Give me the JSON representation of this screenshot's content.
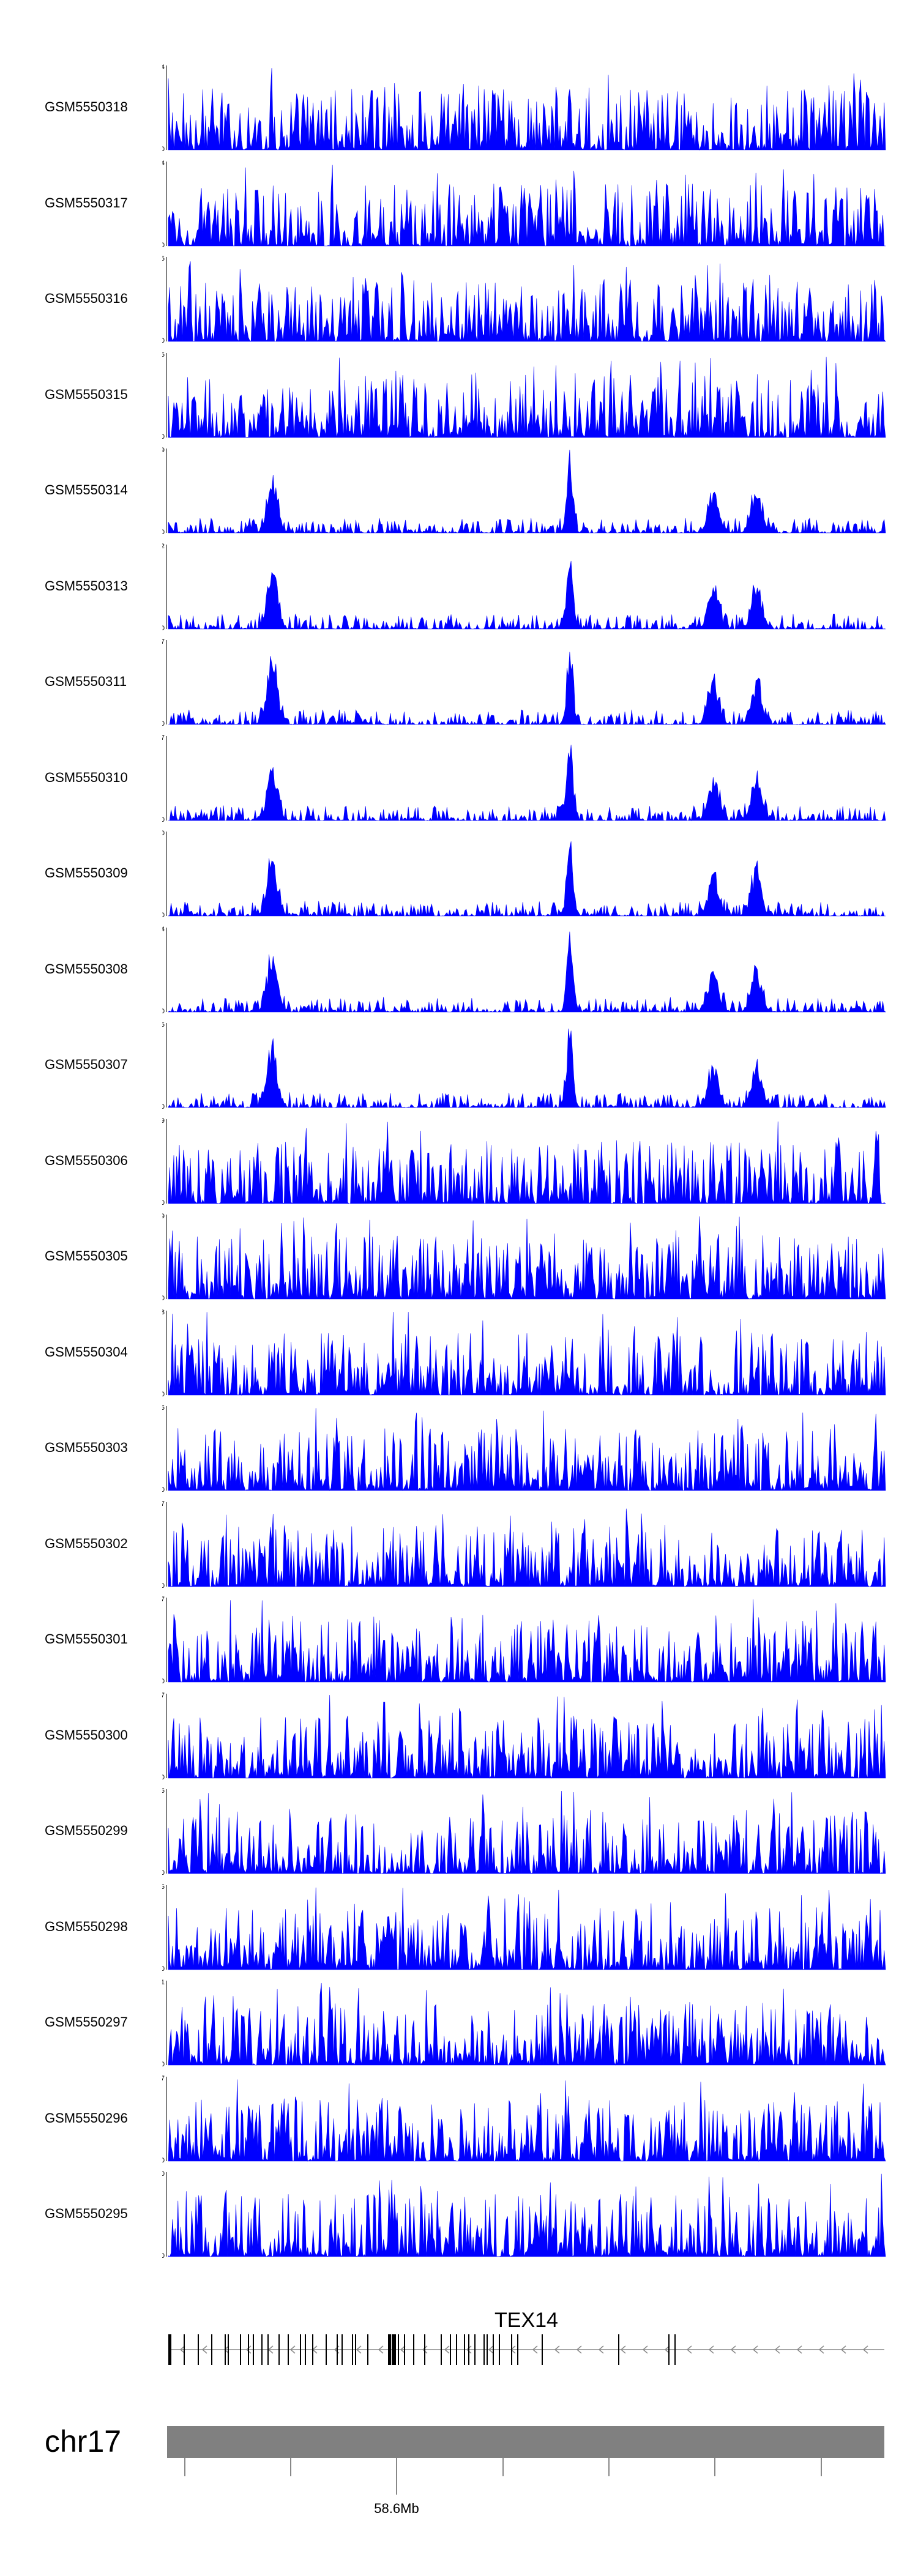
{
  "chart_data": {
    "type": "area",
    "title": "",
    "fill_color": "#0000ff",
    "tracks": [
      {
        "name": "GSM5550318",
        "ymax": 4,
        "ymin": 0
      },
      {
        "name": "GSM5550317",
        "ymax": 4,
        "ymin": 0
      },
      {
        "name": "GSM5550316",
        "ymax": 5,
        "ymin": 0
      },
      {
        "name": "GSM5550315",
        "ymax": 5,
        "ymin": 0
      },
      {
        "name": "GSM5550314",
        "ymax": 19,
        "ymin": 0
      },
      {
        "name": "GSM5550313",
        "ymax": 32,
        "ymin": 0
      },
      {
        "name": "GSM5550311",
        "ymax": 17,
        "ymin": 0
      },
      {
        "name": "GSM5550310",
        "ymax": 27,
        "ymin": 0
      },
      {
        "name": "GSM5550309",
        "ymax": 20,
        "ymin": 0
      },
      {
        "name": "GSM5550308",
        "ymax": 24,
        "ymin": 0
      },
      {
        "name": "GSM5550307",
        "ymax": 15,
        "ymin": 0
      },
      {
        "name": "GSM5550306",
        "ymax": 9,
        "ymin": 0
      },
      {
        "name": "GSM5550305",
        "ymax": 9,
        "ymin": 0
      },
      {
        "name": "GSM5550304",
        "ymax": 8,
        "ymin": 0
      },
      {
        "name": "GSM5550303",
        "ymax": 6,
        "ymin": 0
      },
      {
        "name": "GSM5550302",
        "ymax": 7,
        "ymin": 0
      },
      {
        "name": "GSM5550301",
        "ymax": 7,
        "ymin": 0
      },
      {
        "name": "GSM5550300",
        "ymax": 7,
        "ymin": 0
      },
      {
        "name": "GSM5550299",
        "ymax": 6,
        "ymin": 0
      },
      {
        "name": "GSM5550298",
        "ymax": 6,
        "ymin": 0
      },
      {
        "name": "GSM5550297",
        "ymax": 11,
        "ymin": 0
      },
      {
        "name": "GSM5550296",
        "ymax": 7,
        "ymin": 0
      },
      {
        "name": "GSM5550295",
        "ymax": 10,
        "ymin": 0
      }
    ],
    "x_range_fraction": [
      0,
      1
    ],
    "peaks_relative_position": [
      0.145,
      0.56,
      0.76,
      0.82
    ]
  },
  "gene": {
    "name": "TEX14",
    "strand": "-"
  },
  "chromosome": {
    "label": "chr17",
    "tick_labels": [
      "58.6Mb"
    ]
  }
}
